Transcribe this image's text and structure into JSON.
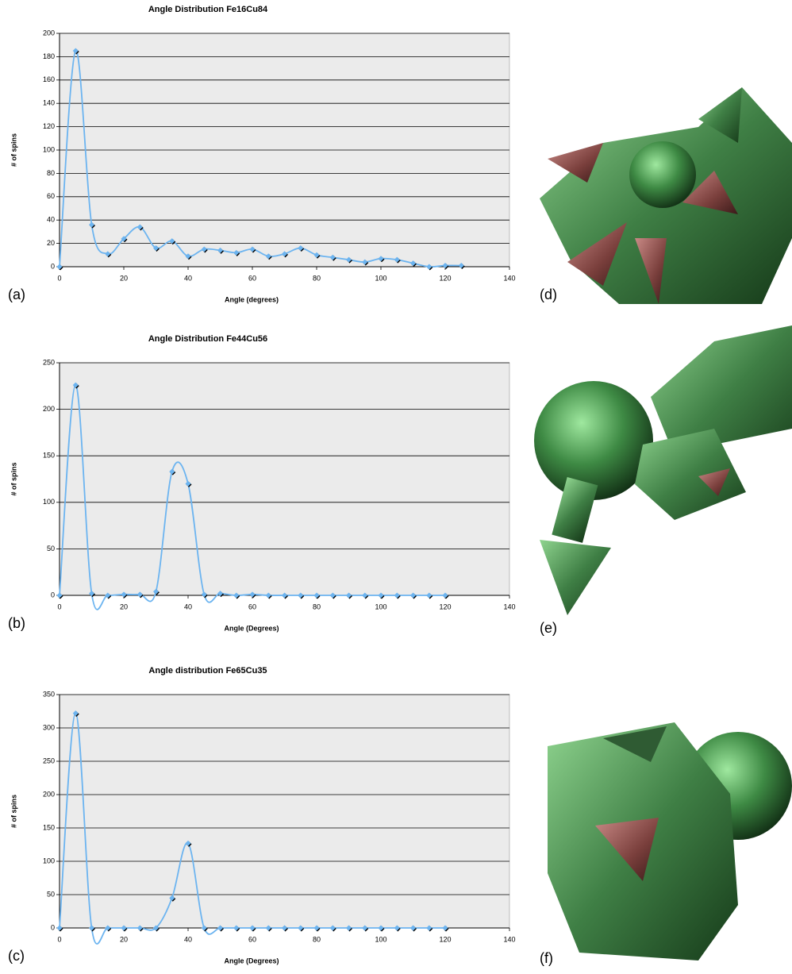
{
  "chart_data": [
    {
      "type": "line",
      "panel_label": "(a)",
      "title": "Angle Distribution Fe16Cu84",
      "x_label": "Angle (degrees)",
      "y_label": "# of spins",
      "color": "#6cb4f0",
      "marker_color": "#000000",
      "grid": true,
      "smooth": true,
      "x": [
        0,
        5,
        10,
        15,
        20,
        25,
        30,
        35,
        40,
        45,
        50,
        55,
        60,
        65,
        70,
        75,
        80,
        85,
        90,
        95,
        100,
        105,
        110,
        115,
        120,
        125
      ],
      "values": [
        0,
        185,
        36,
        11,
        24,
        34,
        16,
        22,
        9,
        15,
        14,
        12,
        15,
        9,
        11,
        16,
        10,
        8,
        6,
        4,
        7,
        6,
        3,
        0,
        1,
        1
      ],
      "xlim": [
        0,
        140
      ],
      "xticks": [
        0,
        20,
        40,
        60,
        80,
        100,
        120,
        140
      ],
      "ylim": [
        0,
        200
      ],
      "yticks": [
        0,
        20,
        40,
        60,
        80,
        100,
        120,
        140,
        160,
        180,
        200
      ]
    },
    {
      "type": "line",
      "panel_label": "(b)",
      "title": "Angle Distribution Fe44Cu56",
      "x_label": "Angle (Degrees)",
      "y_label": "# of spins",
      "color": "#6cb4f0",
      "marker_color": "#000000",
      "grid": true,
      "smooth": true,
      "x": [
        0,
        5,
        10,
        15,
        20,
        25,
        30,
        35,
        40,
        45,
        50,
        55,
        60,
        65,
        70,
        75,
        80,
        85,
        90,
        95,
        100,
        105,
        110,
        115,
        120
      ],
      "values": [
        0,
        226,
        2,
        0,
        1,
        1,
        4,
        133,
        120,
        1,
        2,
        0,
        1,
        0,
        0,
        0,
        0,
        0,
        0,
        0,
        0,
        0,
        0,
        0,
        0
      ],
      "xlim": [
        0,
        140
      ],
      "xticks": [
        0,
        20,
        40,
        60,
        80,
        100,
        120,
        140
      ],
      "ylim": [
        0,
        250
      ],
      "yticks": [
        0,
        50,
        100,
        150,
        200,
        250
      ]
    },
    {
      "type": "line",
      "panel_label": "(c)",
      "title": "Angle distribution Fe65Cu35",
      "x_label": "Angle (Degrees)",
      "y_label": "# of spins",
      "color": "#6cb4f0",
      "marker_color": "#000000",
      "grid": true,
      "smooth": true,
      "x": [
        0,
        5,
        10,
        15,
        20,
        25,
        30,
        35,
        40,
        45,
        50,
        55,
        60,
        65,
        70,
        75,
        80,
        85,
        90,
        95,
        100,
        105,
        110,
        115,
        120
      ],
      "values": [
        0,
        322,
        0,
        0,
        0,
        0,
        0,
        45,
        127,
        0,
        0,
        0,
        0,
        0,
        0,
        0,
        0,
        0,
        0,
        0,
        0,
        0,
        0,
        0,
        0
      ],
      "xlim": [
        0,
        140
      ],
      "xticks": [
        0,
        20,
        40,
        60,
        80,
        100,
        120,
        140
      ],
      "ylim": [
        0,
        350
      ],
      "yticks": [
        0,
        50,
        100,
        150,
        200,
        250,
        300,
        350
      ]
    }
  ],
  "images": [
    {
      "label": "(d)"
    },
    {
      "label": "(e)"
    },
    {
      "label": "(f)"
    }
  ]
}
